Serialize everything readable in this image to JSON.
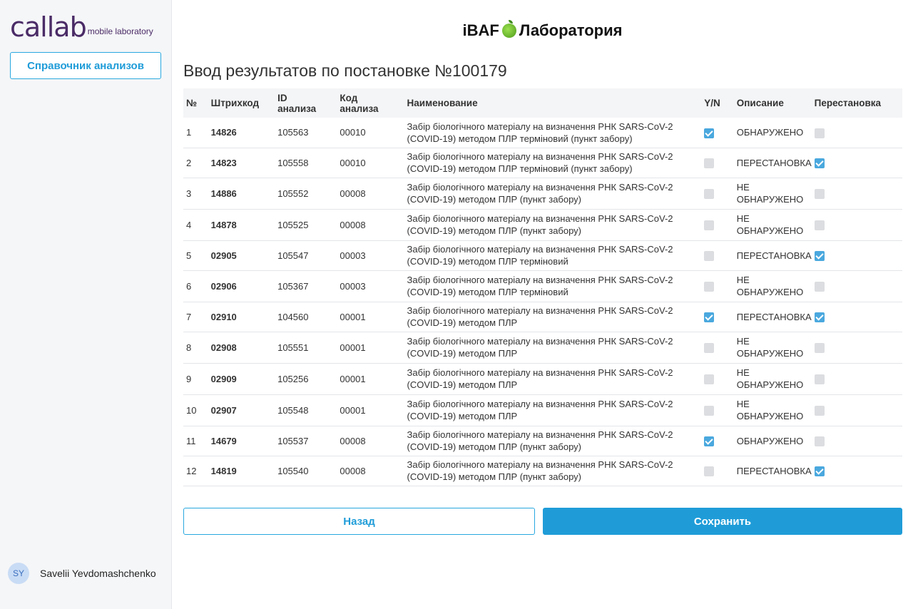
{
  "sidebar": {
    "logo_word": "callab",
    "logo_sub": "mobile laboratory",
    "reference_button": "Справочник анализов",
    "user": {
      "initials": "SY",
      "name": "Savelii Yevdomashchenko"
    }
  },
  "header": {
    "title_left": "iBAF",
    "title_right": "Лаборатория",
    "page_title": "Ввод результатов по постановке №100179"
  },
  "table": {
    "columns": {
      "num": "№",
      "barcode": "Штрихкод",
      "id_line1": "ID",
      "id_line2": "анализа",
      "code_line1": "Код",
      "code_line2": "анализа",
      "name": "Наименование",
      "yn": "Y/N",
      "desc": "Описание",
      "swap": "Перестановка"
    },
    "rows": [
      {
        "num": "1",
        "barcode": "14826",
        "barcode_color": "red",
        "id": "105563",
        "code": "00010",
        "name1": "Забір біологічного матеріалу на визначення РНК SARS-CoV-2",
        "name2": "(COVID-19) методом ПЛР терміновий (пункт забору)",
        "yn": true,
        "desc1": "ОБНАРУЖЕНО",
        "desc2": "",
        "desc_color": "red",
        "swap": false
      },
      {
        "num": "2",
        "barcode": "14823",
        "barcode_color": "orange",
        "id": "105558",
        "code": "00010",
        "name1": "Забір біологічного матеріалу на визначення РНК SARS-CoV-2",
        "name2": "(COVID-19) методом ПЛР терміновий (пункт забору)",
        "yn": false,
        "desc1": "ПЕРЕСТАНОВКА",
        "desc2": "",
        "desc_color": "orange",
        "swap": true
      },
      {
        "num": "3",
        "barcode": "14886",
        "barcode_color": "dark",
        "id": "105552",
        "code": "00008",
        "name1": "Забір біологічного матеріалу на визначення РНК SARS-CoV-2",
        "name2": "(COVID-19) методом ПЛР (пункт забору)",
        "yn": false,
        "desc1": "НЕ",
        "desc2": "ОБНАРУЖЕНО",
        "desc_color": "dark",
        "swap": false
      },
      {
        "num": "4",
        "barcode": "14878",
        "barcode_color": "dark",
        "id": "105525",
        "code": "00008",
        "name1": "Забір біологічного матеріалу на визначення РНК SARS-CoV-2",
        "name2": "(COVID-19) методом ПЛР (пункт забору)",
        "yn": false,
        "desc1": "НЕ",
        "desc2": "ОБНАРУЖЕНО",
        "desc_color": "dark",
        "swap": false
      },
      {
        "num": "5",
        "barcode": "02905",
        "barcode_color": "orange",
        "id": "105547",
        "code": "00003",
        "name1": "Забір біологічного матеріалу на визначення РНК SARS-CoV-2",
        "name2": "(COVID-19) методом ПЛР терміновий",
        "yn": false,
        "desc1": "ПЕРЕСТАНОВКА",
        "desc2": "",
        "desc_color": "orange",
        "swap": true
      },
      {
        "num": "6",
        "barcode": "02906",
        "barcode_color": "dark",
        "id": "105367",
        "code": "00003",
        "name1": "Забір біологічного матеріалу на визначення РНК SARS-CoV-2",
        "name2": "(COVID-19) методом ПЛР терміновий",
        "yn": false,
        "desc1": "НЕ",
        "desc2": "ОБНАРУЖЕНО",
        "desc_color": "dark",
        "swap": false
      },
      {
        "num": "7",
        "barcode": "02910",
        "barcode_color": "orange",
        "id": "104560",
        "code": "00001",
        "name1": "Забір біологічного матеріалу на визначення РНК SARS-CoV-2",
        "name2": "(COVID-19) методом ПЛР",
        "yn": true,
        "desc1": "ПЕРЕСТАНОВКА",
        "desc2": "",
        "desc_color": "orange",
        "swap": true
      },
      {
        "num": "8",
        "barcode": "02908",
        "barcode_color": "dark",
        "id": "105551",
        "code": "00001",
        "name1": "Забір біологічного матеріалу на визначення РНК SARS-CoV-2",
        "name2": "(COVID-19) методом ПЛР",
        "yn": false,
        "desc1": "НЕ",
        "desc2": "ОБНАРУЖЕНО",
        "desc_color": "dark",
        "swap": false
      },
      {
        "num": "9",
        "barcode": "02909",
        "barcode_color": "dark",
        "id": "105256",
        "code": "00001",
        "name1": "Забір біологічного матеріалу на визначення РНК SARS-CoV-2",
        "name2": "(COVID-19) методом ПЛР",
        "yn": false,
        "desc1": "НЕ",
        "desc2": "ОБНАРУЖЕНО",
        "desc_color": "dark",
        "swap": false
      },
      {
        "num": "10",
        "barcode": "02907",
        "barcode_color": "dark",
        "id": "105548",
        "code": "00001",
        "name1": "Забір біологічного матеріалу на визначення РНК SARS-CoV-2",
        "name2": "(COVID-19) методом ПЛР",
        "yn": false,
        "desc1": "НЕ",
        "desc2": "ОБНАРУЖЕНО",
        "desc_color": "dark",
        "swap": false
      },
      {
        "num": "11",
        "barcode": "14679",
        "barcode_color": "red",
        "id": "105537",
        "code": "00008",
        "name1": "Забір біологічного матеріалу на визначення РНК SARS-CoV-2",
        "name2": "(COVID-19) методом ПЛР (пункт забору)",
        "yn": true,
        "desc1": "ОБНАРУЖЕНО",
        "desc2": "",
        "desc_color": "red",
        "swap": false
      },
      {
        "num": "12",
        "barcode": "14819",
        "barcode_color": "orange",
        "id": "105540",
        "code": "00008",
        "name1": "Забір біологічного матеріалу на визначення РНК SARS-CoV-2",
        "name2": "(COVID-19) методом ПЛР (пункт забору)",
        "yn": false,
        "desc1": "ПЕРЕСТАНОВКА",
        "desc2": "",
        "desc_color": "orange",
        "swap": true
      }
    ]
  },
  "buttons": {
    "back": "Назад",
    "save": "Сохранить"
  },
  "colors": {
    "accent": "#1f9cd8",
    "red": "#e8251d",
    "orange": "#f2a614",
    "brand": "#4a2b66"
  }
}
